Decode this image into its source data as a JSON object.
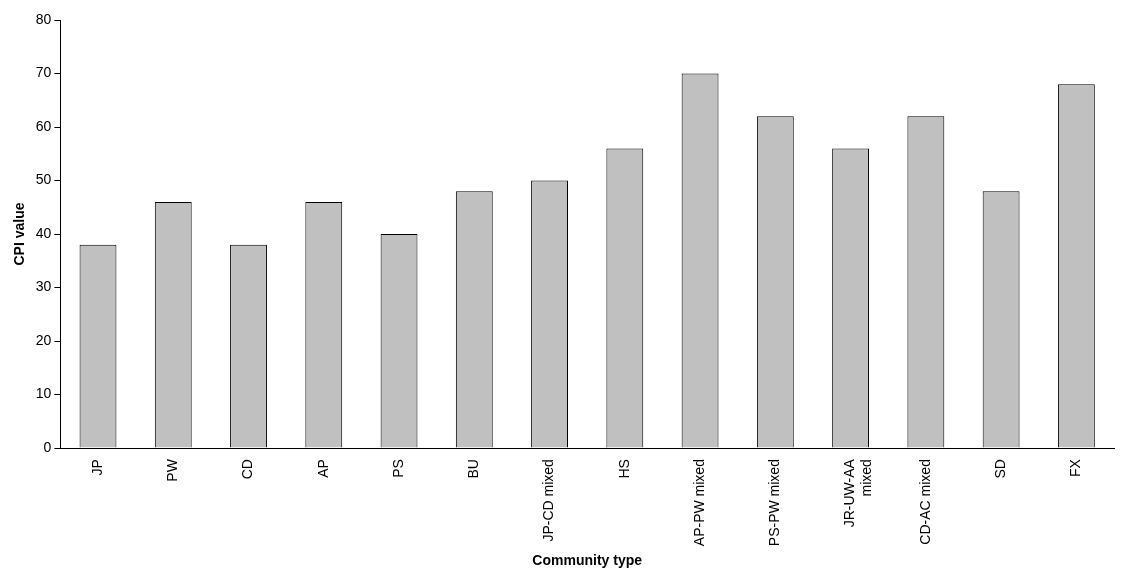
{
  "chart_data": {
    "type": "bar",
    "xlabel": "Community type",
    "ylabel": "CPI value",
    "categories": [
      "JP",
      "PW",
      "CD",
      "AP",
      "PS",
      "BU",
      "JP-CD mixed",
      "HS",
      "AP-PW mixed",
      "PS-PW mixed",
      "JR-UW-AA mixed",
      "CD-AC mixed",
      "SD",
      "FX"
    ],
    "values": [
      38,
      46,
      38,
      46,
      40,
      48,
      50,
      56,
      70,
      62,
      56,
      62,
      48,
      68
    ],
    "color": "#c0c0c0",
    "ylim": [
      0,
      80
    ],
    "yticks": [
      0,
      10,
      20,
      30,
      40,
      50,
      60,
      70,
      80
    ],
    "grid": false,
    "legend": false
  }
}
